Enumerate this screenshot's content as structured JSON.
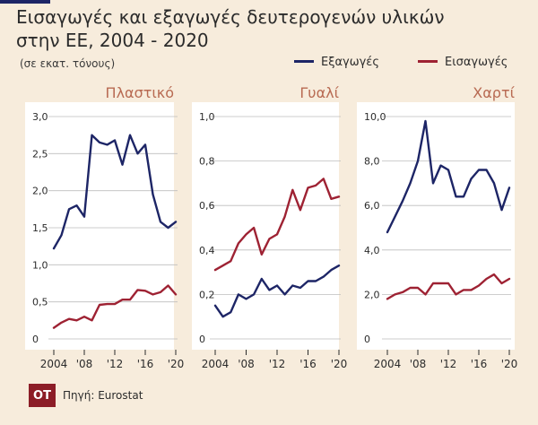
{
  "title_line1": "Εισαγωγές και εξαγωγές δευτερογενών υλικών",
  "title_line2": "στην ΕΕ, 2004 - 2020",
  "unit": "(σε εκατ. τόνους)",
  "legend": [
    {
      "name": "Εξαγωγές",
      "color": "#1d2566"
    },
    {
      "name": "Εισαγωγές",
      "color": "#9e2233"
    }
  ],
  "source": "Πηγή: Eurostat",
  "logo": "OT",
  "chart_data": [
    {
      "type": "line",
      "title": "Πλαστικό",
      "x": [
        2004,
        2005,
        2006,
        2007,
        2008,
        2009,
        2010,
        2011,
        2012,
        2013,
        2014,
        2015,
        2016,
        2017,
        2018,
        2019,
        2020
      ],
      "ylim": [
        0,
        3.0
      ],
      "yticks": [
        "0",
        "0,5",
        "1,0",
        "1,5",
        "2,0",
        "2,5",
        "3,0"
      ],
      "ytick_values": [
        0,
        0.5,
        1.0,
        1.5,
        2.0,
        2.5,
        3.0
      ],
      "xticks": [
        "2004",
        "'08",
        "'12",
        "'16",
        "'20"
      ],
      "xtick_values": [
        2004,
        2008,
        2012,
        2016,
        2020
      ],
      "series": [
        {
          "name": "Εξαγωγές",
          "values": [
            1.22,
            1.4,
            1.75,
            1.8,
            1.65,
            2.75,
            2.65,
            2.62,
            2.68,
            2.35,
            2.75,
            2.5,
            2.62,
            1.95,
            1.58,
            1.5,
            1.58
          ]
        },
        {
          "name": "Εισαγωγές",
          "values": [
            0.15,
            0.22,
            0.27,
            0.25,
            0.3,
            0.25,
            0.46,
            0.47,
            0.47,
            0.53,
            0.53,
            0.66,
            0.65,
            0.6,
            0.63,
            0.72,
            0.6
          ]
        }
      ]
    },
    {
      "type": "line",
      "title": "Γυαλί",
      "x": [
        2004,
        2005,
        2006,
        2007,
        2008,
        2009,
        2010,
        2011,
        2012,
        2013,
        2014,
        2015,
        2016,
        2017,
        2018,
        2019,
        2020
      ],
      "ylim": [
        0,
        1.0
      ],
      "yticks": [
        "0",
        "0,2",
        "0,4",
        "0,6",
        "0,8",
        "1,0"
      ],
      "ytick_values": [
        0,
        0.2,
        0.4,
        0.6,
        0.8,
        1.0
      ],
      "xticks": [
        "2004",
        "'08",
        "'12",
        "'16",
        "'20"
      ],
      "xtick_values": [
        2004,
        2008,
        2012,
        2016,
        2020
      ],
      "series": [
        {
          "name": "Εξαγωγές",
          "values": [
            0.15,
            0.1,
            0.12,
            0.2,
            0.18,
            0.2,
            0.27,
            0.22,
            0.24,
            0.2,
            0.24,
            0.23,
            0.26,
            0.26,
            0.28,
            0.31,
            0.33
          ]
        },
        {
          "name": "Εισαγωγές",
          "values": [
            0.31,
            0.33,
            0.35,
            0.43,
            0.47,
            0.5,
            0.38,
            0.45,
            0.47,
            0.55,
            0.67,
            0.58,
            0.68,
            0.69,
            0.72,
            0.63,
            0.64
          ]
        }
      ]
    },
    {
      "type": "line",
      "title": "Χαρτί",
      "x": [
        2004,
        2005,
        2006,
        2007,
        2008,
        2009,
        2010,
        2011,
        2012,
        2013,
        2014,
        2015,
        2016,
        2017,
        2018,
        2019,
        2020
      ],
      "ylim": [
        0,
        10.0
      ],
      "yticks": [
        "0",
        "2,0",
        "4,0",
        "6,0",
        "8,0",
        "10,0"
      ],
      "ytick_values": [
        0,
        2,
        4,
        6,
        8,
        10
      ],
      "xticks": [
        "2004",
        "'08",
        "'12",
        "'16",
        "'20"
      ],
      "xtick_values": [
        2004,
        2008,
        2012,
        2016,
        2020
      ],
      "series": [
        {
          "name": "Εξαγωγές",
          "values": [
            4.8,
            5.5,
            6.2,
            7.0,
            8.0,
            9.8,
            7.0,
            7.8,
            7.6,
            6.4,
            6.4,
            7.2,
            7.6,
            7.6,
            7.0,
            5.8,
            6.8
          ]
        },
        {
          "name": "Εισαγωγές",
          "values": [
            1.8,
            2.0,
            2.1,
            2.3,
            2.3,
            2.0,
            2.5,
            2.5,
            2.5,
            2.0,
            2.2,
            2.2,
            2.4,
            2.7,
            2.9,
            2.5,
            2.7
          ]
        }
      ]
    }
  ]
}
